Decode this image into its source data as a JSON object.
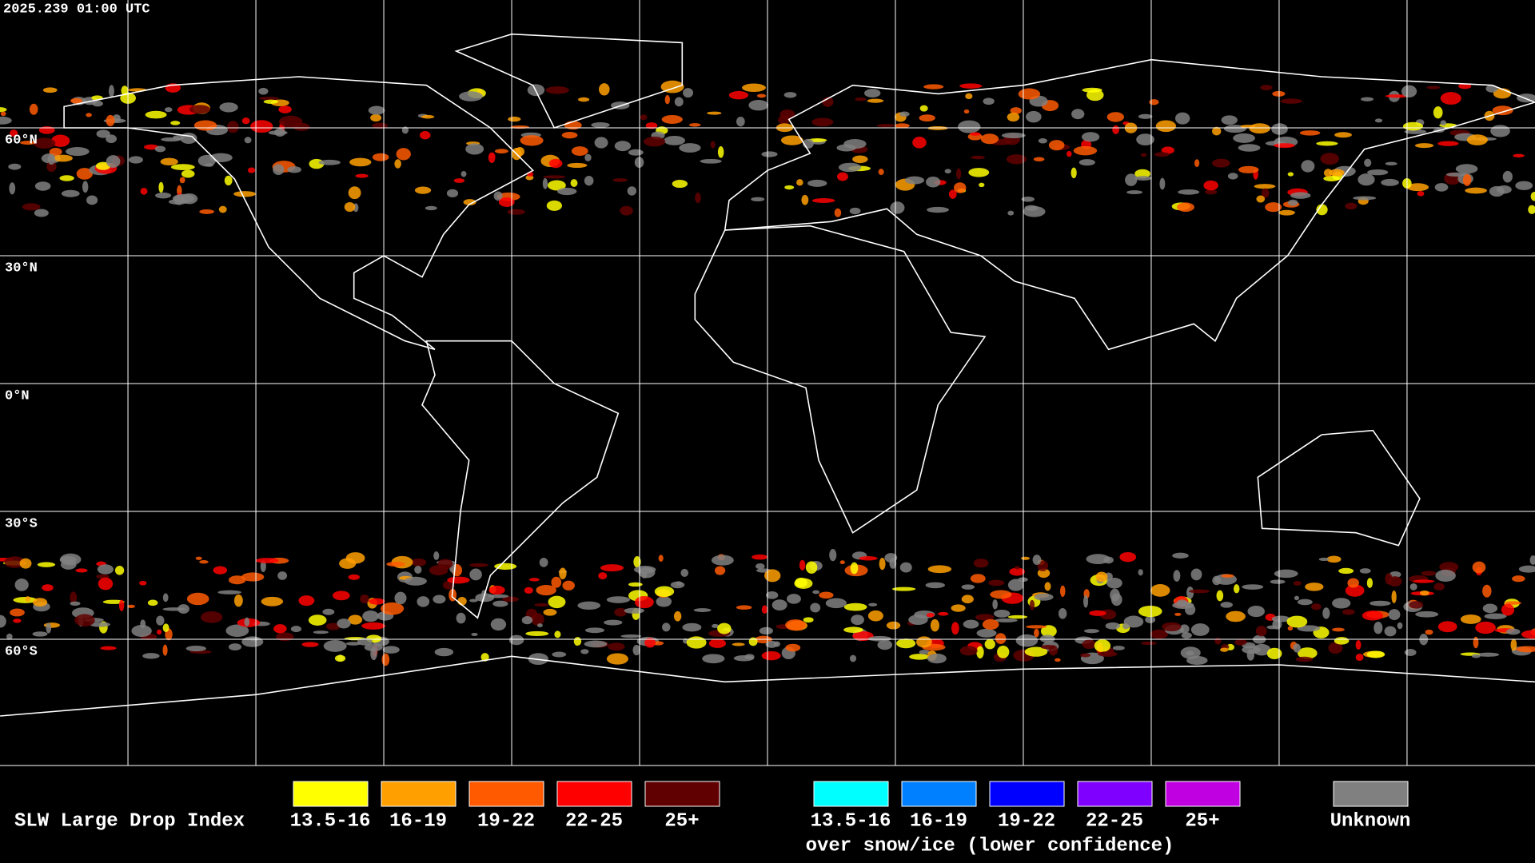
{
  "timestamp": "2025.239 01:00 UTC",
  "lat_labels": [
    "60°N",
    "30°N",
    "0°N",
    "30°S",
    "60°S"
  ],
  "legend": {
    "title": "SLW Large Drop Index",
    "liquid": [
      {
        "label": "13.5-16",
        "color": "#ffff00"
      },
      {
        "label": "16-19",
        "color": "#ffa000"
      },
      {
        "label": "19-22",
        "color": "#ff5a00"
      },
      {
        "label": "22-25",
        "color": "#ff0000"
      },
      {
        "label": "25+",
        "color": "#600000"
      }
    ],
    "snow_ice": [
      {
        "label": "13.5-16",
        "color": "#00ffff"
      },
      {
        "label": "16-19",
        "color": "#0080ff"
      },
      {
        "label": "19-22",
        "color": "#0000ff"
      },
      {
        "label": "22-25",
        "color": "#8000ff"
      },
      {
        "label": "25+",
        "color": "#c000e0"
      }
    ],
    "snow_ice_note": "over snow/ice (lower confidence)",
    "unknown": {
      "label": "Unknown",
      "color": "#808080"
    }
  }
}
